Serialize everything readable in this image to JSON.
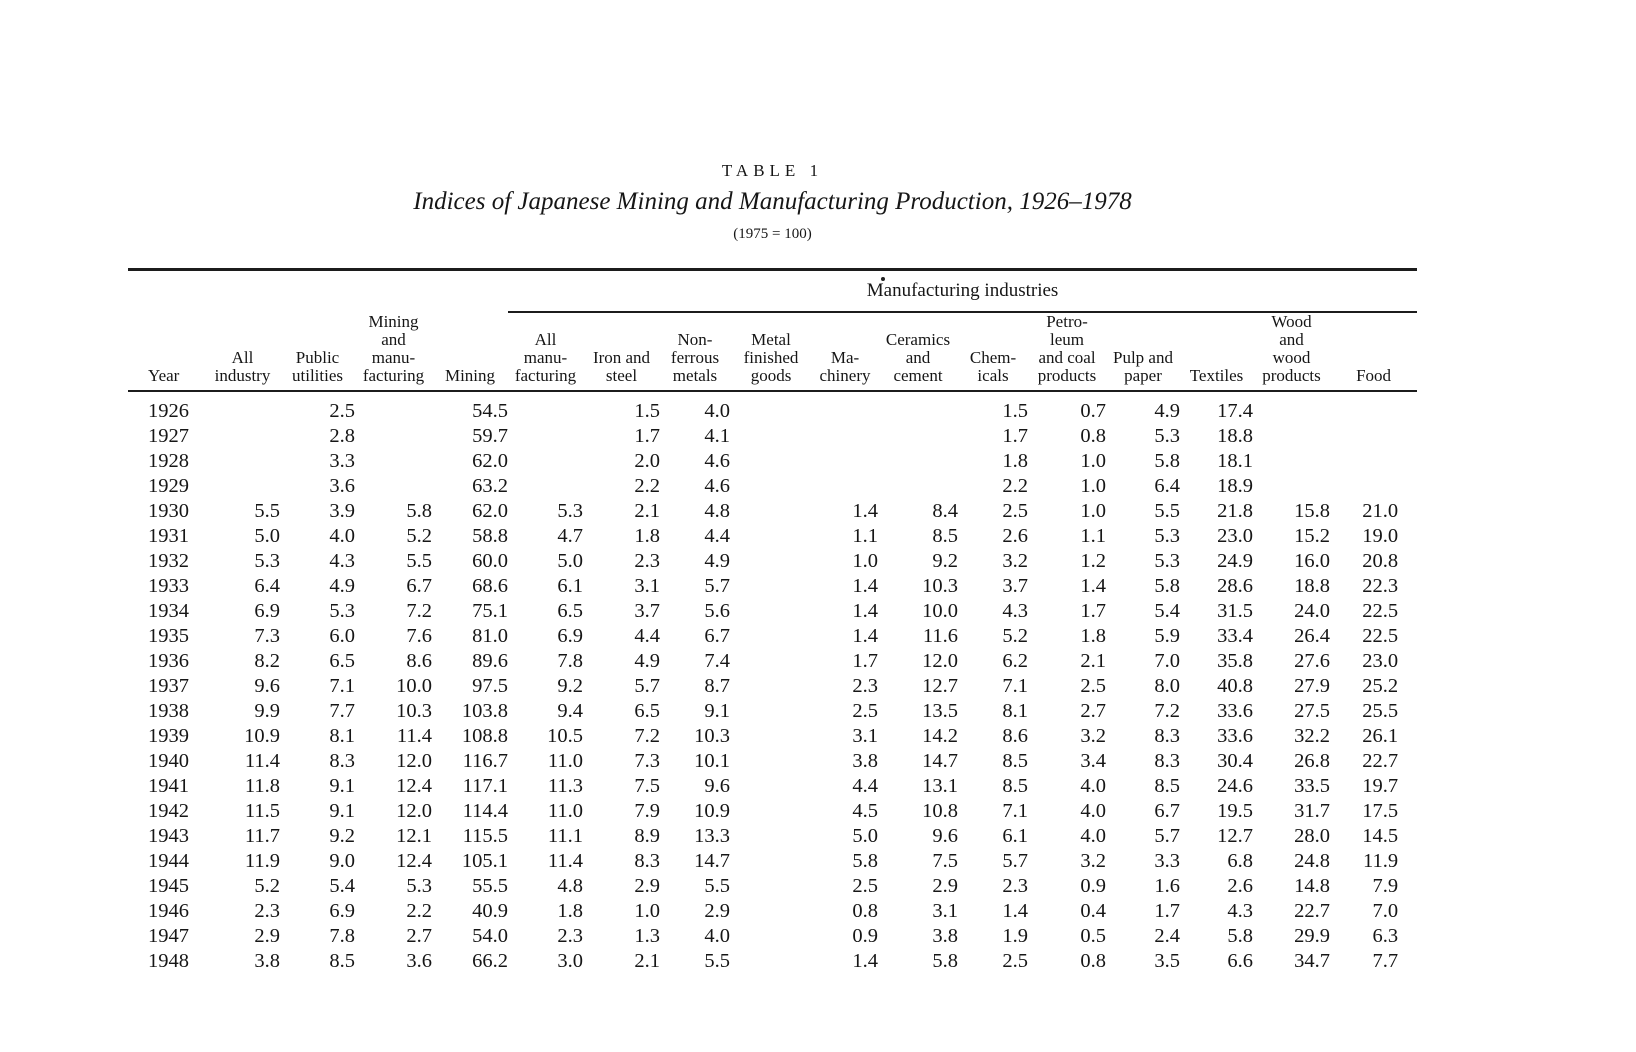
{
  "page": {
    "table_label": "TABLE 1",
    "title": "Indices of Japanese Mining and Manufacturing Production, 1926–1978",
    "subtitle": "(1975 = 100)"
  },
  "table": {
    "group_header": "Manufacturing industries",
    "columns": [
      {
        "id": "year",
        "label": "Year"
      },
      {
        "id": "all-industry",
        "label": "All\nindustry"
      },
      {
        "id": "public-utilities",
        "label": "Public\nutilities"
      },
      {
        "id": "mining-and-manufacturing",
        "label": "Mining\nand\nmanu-\nfacturing"
      },
      {
        "id": "mining",
        "label": "Mining"
      },
      {
        "id": "all-manufacturing",
        "label": "All\nmanu-\nfacturing"
      },
      {
        "id": "iron-and-steel",
        "label": "Iron and\nsteel"
      },
      {
        "id": "non-ferrous-metals",
        "label": "Non-\nferrous\nmetals"
      },
      {
        "id": "metal-finished-goods",
        "label": "Metal\nfinished\ngoods"
      },
      {
        "id": "machinery",
        "label": "Ma-\nchinery"
      },
      {
        "id": "ceramics-and-cement",
        "label": "Ceramics\nand\ncement"
      },
      {
        "id": "chemicals",
        "label": "Chem-\nicals"
      },
      {
        "id": "petroleum-and-coal-products",
        "label": "Petro-\nleum\nand coal\nproducts"
      },
      {
        "id": "pulp-and-paper",
        "label": "Pulp and\npaper"
      },
      {
        "id": "textiles",
        "label": "Textiles"
      },
      {
        "id": "wood-and-wood-products",
        "label": "Wood\nand\nwood\nproducts"
      },
      {
        "id": "food",
        "label": "Food"
      }
    ],
    "rows": [
      [
        "1926",
        "",
        "2.5",
        "",
        "54.5",
        "",
        "1.5",
        "4.0",
        "",
        "",
        "",
        "1.5",
        "0.7",
        "4.9",
        "17.4",
        "",
        ""
      ],
      [
        "1927",
        "",
        "2.8",
        "",
        "59.7",
        "",
        "1.7",
        "4.1",
        "",
        "",
        "",
        "1.7",
        "0.8",
        "5.3",
        "18.8",
        "",
        ""
      ],
      [
        "1928",
        "",
        "3.3",
        "",
        "62.0",
        "",
        "2.0",
        "4.6",
        "",
        "",
        "",
        "1.8",
        "1.0",
        "5.8",
        "18.1",
        "",
        ""
      ],
      [
        "1929",
        "",
        "3.6",
        "",
        "63.2",
        "",
        "2.2",
        "4.6",
        "",
        "",
        "",
        "2.2",
        "1.0",
        "6.4",
        "18.9",
        "",
        ""
      ],
      [
        "1930",
        "5.5",
        "3.9",
        "5.8",
        "62.0",
        "5.3",
        "2.1",
        "4.8",
        "",
        "1.4",
        "8.4",
        "2.5",
        "1.0",
        "5.5",
        "21.8",
        "15.8",
        "21.0"
      ],
      [
        "1931",
        "5.0",
        "4.0",
        "5.2",
        "58.8",
        "4.7",
        "1.8",
        "4.4",
        "",
        "1.1",
        "8.5",
        "2.6",
        "1.1",
        "5.3",
        "23.0",
        "15.2",
        "19.0"
      ],
      [
        "1932",
        "5.3",
        "4.3",
        "5.5",
        "60.0",
        "5.0",
        "2.3",
        "4.9",
        "",
        "1.0",
        "9.2",
        "3.2",
        "1.2",
        "5.3",
        "24.9",
        "16.0",
        "20.8"
      ],
      [
        "1933",
        "6.4",
        "4.9",
        "6.7",
        "68.6",
        "6.1",
        "3.1",
        "5.7",
        "",
        "1.4",
        "10.3",
        "3.7",
        "1.4",
        "5.8",
        "28.6",
        "18.8",
        "22.3"
      ],
      [
        "1934",
        "6.9",
        "5.3",
        "7.2",
        "75.1",
        "6.5",
        "3.7",
        "5.6",
        "",
        "1.4",
        "10.0",
        "4.3",
        "1.7",
        "5.4",
        "31.5",
        "24.0",
        "22.5"
      ],
      [
        "1935",
        "7.3",
        "6.0",
        "7.6",
        "81.0",
        "6.9",
        "4.4",
        "6.7",
        "",
        "1.4",
        "11.6",
        "5.2",
        "1.8",
        "5.9",
        "33.4",
        "26.4",
        "22.5"
      ],
      [
        "1936",
        "8.2",
        "6.5",
        "8.6",
        "89.6",
        "7.8",
        "4.9",
        "7.4",
        "",
        "1.7",
        "12.0",
        "6.2",
        "2.1",
        "7.0",
        "35.8",
        "27.6",
        "23.0"
      ],
      [
        "1937",
        "9.6",
        "7.1",
        "10.0",
        "97.5",
        "9.2",
        "5.7",
        "8.7",
        "",
        "2.3",
        "12.7",
        "7.1",
        "2.5",
        "8.0",
        "40.8",
        "27.9",
        "25.2"
      ],
      [
        "1938",
        "9.9",
        "7.7",
        "10.3",
        "103.8",
        "9.4",
        "6.5",
        "9.1",
        "",
        "2.5",
        "13.5",
        "8.1",
        "2.7",
        "7.2",
        "33.6",
        "27.5",
        "25.5"
      ],
      [
        "1939",
        "10.9",
        "8.1",
        "11.4",
        "108.8",
        "10.5",
        "7.2",
        "10.3",
        "",
        "3.1",
        "14.2",
        "8.6",
        "3.2",
        "8.3",
        "33.6",
        "32.2",
        "26.1"
      ],
      [
        "1940",
        "11.4",
        "8.3",
        "12.0",
        "116.7",
        "11.0",
        "7.3",
        "10.1",
        "",
        "3.8",
        "14.7",
        "8.5",
        "3.4",
        "8.3",
        "30.4",
        "26.8",
        "22.7"
      ],
      [
        "1941",
        "11.8",
        "9.1",
        "12.4",
        "117.1",
        "11.3",
        "7.5",
        "9.6",
        "",
        "4.4",
        "13.1",
        "8.5",
        "4.0",
        "8.5",
        "24.6",
        "33.5",
        "19.7"
      ],
      [
        "1942",
        "11.5",
        "9.1",
        "12.0",
        "114.4",
        "11.0",
        "7.9",
        "10.9",
        "",
        "4.5",
        "10.8",
        "7.1",
        "4.0",
        "6.7",
        "19.5",
        "31.7",
        "17.5"
      ],
      [
        "1943",
        "11.7",
        "9.2",
        "12.1",
        "115.5",
        "11.1",
        "8.9",
        "13.3",
        "",
        "5.0",
        "9.6",
        "6.1",
        "4.0",
        "5.7",
        "12.7",
        "28.0",
        "14.5"
      ],
      [
        "1944",
        "11.9",
        "9.0",
        "12.4",
        "105.1",
        "11.4",
        "8.3",
        "14.7",
        "",
        "5.8",
        "7.5",
        "5.7",
        "3.2",
        "3.3",
        "6.8",
        "24.8",
        "11.9"
      ],
      [
        "1945",
        "5.2",
        "5.4",
        "5.3",
        "55.5",
        "4.8",
        "2.9",
        "5.5",
        "",
        "2.5",
        "2.9",
        "2.3",
        "0.9",
        "1.6",
        "2.6",
        "14.8",
        "7.9"
      ],
      [
        "1946",
        "2.3",
        "6.9",
        "2.2",
        "40.9",
        "1.8",
        "1.0",
        "2.9",
        "",
        "0.8",
        "3.1",
        "1.4",
        "0.4",
        "1.7",
        "4.3",
        "22.7",
        "7.0"
      ],
      [
        "1947",
        "2.9",
        "7.8",
        "2.7",
        "54.0",
        "2.3",
        "1.3",
        "4.0",
        "",
        "0.9",
        "3.8",
        "1.9",
        "0.5",
        "2.4",
        "5.8",
        "29.9",
        "6.3"
      ],
      [
        "1948",
        "3.8",
        "8.5",
        "3.6",
        "66.2",
        "3.0",
        "2.1",
        "5.5",
        "",
        "1.4",
        "5.8",
        "2.5",
        "0.8",
        "3.5",
        "6.6",
        "34.7",
        "7.7"
      ]
    ]
  }
}
